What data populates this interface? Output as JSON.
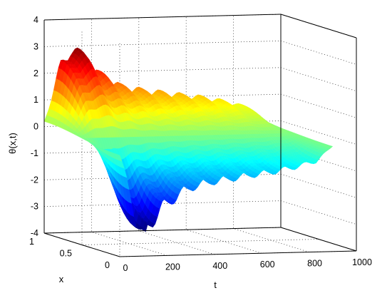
{
  "chart_data": {
    "type": "surface",
    "title": "",
    "xlabel": "t",
    "ylabel": "x",
    "zlabel": "θ(x,t)",
    "t_ticks": [
      "0",
      "200",
      "400",
      "600",
      "800",
      "1000"
    ],
    "x_ticks": [
      "0",
      "0.5",
      "1"
    ],
    "z_ticks": [
      "-4",
      "-3",
      "-2",
      "-1",
      "0",
      "1",
      "2",
      "3",
      "4"
    ],
    "t_range": [
      0,
      1000
    ],
    "x_range": [
      0,
      1
    ],
    "z_range": [
      -4,
      4
    ],
    "grid": true,
    "colormap": "jet",
    "surface": {
      "description_values": {
        "peak_envelope_t": [
          0,
          70,
          120,
          180,
          250,
          320,
          400,
          480,
          560,
          650,
          740,
          830,
          900
        ],
        "peak_envelope_amplitude": [
          0.2,
          2.1,
          2.85,
          2.2,
          1.7,
          1.4,
          1.25,
          1.15,
          1.05,
          0.95,
          0.8,
          0.6,
          0.05
        ]
      }
    }
  }
}
